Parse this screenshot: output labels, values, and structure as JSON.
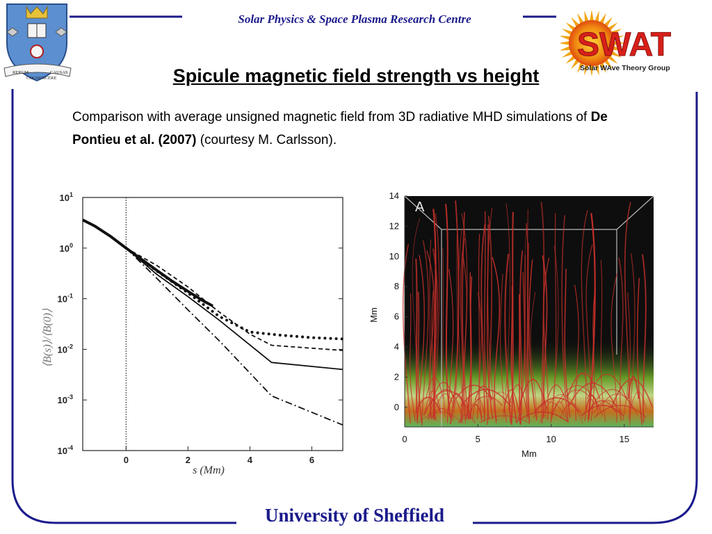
{
  "header": {
    "centre_name": "Solar Physics & Space Plasma Research Centre",
    "crest_motto_left": "RERUM",
    "crest_motto_center": "COGNOSCERE",
    "crest_motto_right": "CAUSAS",
    "swat_logo_text": "SWAT",
    "swat_subtitle": "Solar WAve Theory Group"
  },
  "slide": {
    "title": "Spicule magnetic field strength vs height",
    "body_prefix": "Comparison with average unsigned magnetic field from 3D radiative MHD simulations of ",
    "body_citation": "De Pontieu et al. (2007)",
    "body_suffix": " (courtesy M. Carlsson)."
  },
  "footer": {
    "university": "University of Sheffield"
  },
  "colors": {
    "navy": "#1a1a8c",
    "field_line_red": "#c8302a"
  },
  "chart_data": [
    {
      "type": "line",
      "title": "",
      "xlabel": "s (Mm)",
      "ylabel": "⟨B(s)⟩/⟨B(0)⟩",
      "yscale": "log",
      "xlim": [
        -1.4,
        7
      ],
      "ylim": [
        0.0001,
        10
      ],
      "x_ticks": [
        "0",
        "2",
        "4",
        "6"
      ],
      "y_ticks": [
        "10^1",
        "10^0",
        "10^-1",
        "10^-2",
        "10^-3",
        "10^-4"
      ],
      "series": [
        {
          "name": "thick solid",
          "style": "thick",
          "x": [
            -1.4,
            -1.0,
            -0.5,
            0,
            0.5,
            1.0,
            1.5,
            2.0,
            2.5,
            2.8
          ],
          "y": [
            3.6,
            2.7,
            1.7,
            1.0,
            0.6,
            0.36,
            0.22,
            0.14,
            0.09,
            0.072
          ]
        },
        {
          "name": "solid",
          "style": "solid",
          "x": [
            0,
            1.0,
            2.0,
            3.0,
            4.7,
            7.0
          ],
          "y": [
            1.0,
            0.3,
            0.11,
            0.038,
            0.0055,
            0.004
          ]
        },
        {
          "name": "dashed",
          "style": "dashed",
          "x": [
            0,
            1.0,
            2.0,
            3.0,
            4.0,
            4.7,
            7.0
          ],
          "y": [
            1.0,
            0.45,
            0.17,
            0.055,
            0.02,
            0.012,
            0.0095
          ]
        },
        {
          "name": "dotted",
          "style": "dotted",
          "x": [
            0,
            1.0,
            2.0,
            3.0,
            4.0,
            5.0,
            6.0,
            7.0
          ],
          "y": [
            1.0,
            0.35,
            0.13,
            0.045,
            0.022,
            0.019,
            0.017,
            0.016
          ]
        },
        {
          "name": "dash-dot",
          "style": "dashdot",
          "x": [
            0,
            1.0,
            2.0,
            3.0,
            4.7,
            7.0
          ],
          "y": [
            1.0,
            0.25,
            0.06,
            0.015,
            0.0012,
            0.00032
          ]
        }
      ]
    },
    {
      "type": "other",
      "title": "A",
      "xlabel": "Mm",
      "ylabel": "Mm",
      "xlim": [
        0,
        17
      ],
      "ylim": [
        -1.3,
        14
      ],
      "x_ticks": [
        "0",
        "5",
        "10",
        "15"
      ],
      "y_ticks": [
        "14",
        "12",
        "10",
        "8",
        "6",
        "4",
        "2",
        "0"
      ]
    }
  ]
}
